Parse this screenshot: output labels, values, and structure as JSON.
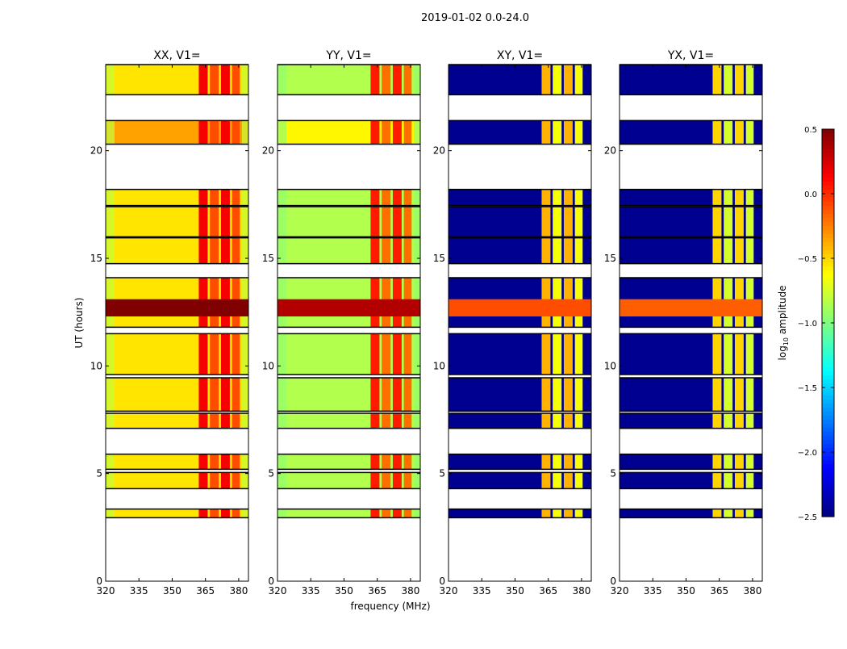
{
  "chart_data": {
    "type": "heatmap",
    "title": "2019-01-02 0.0-24.0",
    "xlabel": "frequency (MHz)",
    "ylabel": "UT (hours)",
    "xlim": [
      320,
      384.4
    ],
    "ylim": [
      0,
      24
    ],
    "xticks": [
      320,
      335,
      350,
      365,
      380
    ],
    "yticks": [
      0,
      5,
      10,
      15,
      20
    ],
    "colorbar": {
      "label_main": "log",
      "label_sub": "10",
      "label_rest": " amplitude",
      "range": [
        -2.5,
        0.5
      ],
      "ticks": [
        "0.5",
        "0.0",
        "−0.5",
        "−1.0",
        "−1.5",
        "−2.0",
        "−2.5"
      ],
      "tick_values": [
        0.5,
        0.0,
        -0.5,
        -1.0,
        -1.5,
        -2.0,
        -2.5
      ],
      "colormap": "jet"
    },
    "segments_hours": [
      [
        22.6,
        24.0
      ],
      [
        20.3,
        21.4
      ],
      [
        17.45,
        18.2
      ],
      [
        16.0,
        17.4
      ],
      [
        14.75,
        15.95
      ],
      [
        11.8,
        14.1
      ],
      [
        9.6,
        11.5
      ],
      [
        7.9,
        9.45
      ],
      [
        7.1,
        7.8
      ],
      [
        5.2,
        5.9
      ],
      [
        4.3,
        5.05
      ],
      [
        2.95,
        3.35
      ]
    ],
    "strong_band_hours": [
      12.3,
      13.1
    ],
    "rfi_columns_mhz": [
      [
        362,
        366
      ],
      [
        367,
        371
      ],
      [
        372,
        376
      ],
      [
        377,
        380.5
      ]
    ],
    "panels": [
      {
        "title": "XX, V1=",
        "base": -0.55,
        "edge": -0.8,
        "rfi": 0.15,
        "band": 0.5,
        "orange_segment": -0.35
      },
      {
        "title": "YY, V1=",
        "base": -0.85,
        "edge": -0.95,
        "rfi": 0.05,
        "band": 0.35,
        "orange_segment": -0.6
      },
      {
        "title": "XY, V1=",
        "base": -2.45,
        "edge": -2.45,
        "rfi": -0.4,
        "band": -0.1,
        "orange_segment": -2.45
      },
      {
        "title": "YX, V1=",
        "base": -2.45,
        "edge": -2.45,
        "rfi": -0.5,
        "band": -0.15,
        "orange_segment": -2.45
      }
    ]
  }
}
